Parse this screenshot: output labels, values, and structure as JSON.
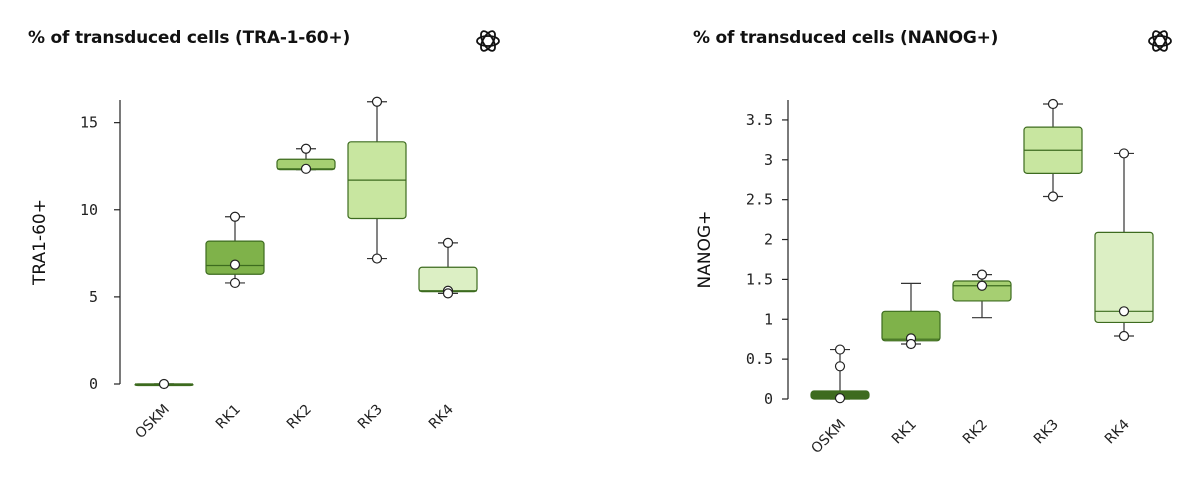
{
  "chart_data": [
    {
      "type": "box",
      "title": "% of transduced cells (TRA-1-60+)",
      "ylabel": "TRA1-60+",
      "xlabel": "",
      "ylim": [
        0,
        16.3
      ],
      "yticks": [
        0,
        5,
        10,
        15
      ],
      "ytick_labels": [
        "0",
        "5",
        "10",
        "15"
      ],
      "grid": false,
      "categories": [
        "OSKM",
        "RK1",
        "RK2",
        "RK3",
        "RK4"
      ],
      "boxes": [
        {
          "category": "OSKM",
          "min": 0,
          "q1": 0,
          "median": 0,
          "q3": 0,
          "max": 0,
          "points": [
            0
          ],
          "color": "#3e6b1f"
        },
        {
          "category": "RK1",
          "min": 5.8,
          "q1": 6.3,
          "median": 6.8,
          "q3": 8.2,
          "max": 9.6,
          "points": [
            9.6,
            6.85,
            5.8
          ],
          "color": "#7fb24a"
        },
        {
          "category": "RK2",
          "min": 12.3,
          "q1": 12.3,
          "median": 12.35,
          "q3": 12.9,
          "max": 13.5,
          "points": [
            13.5,
            12.35
          ],
          "color": "#a6cf72"
        },
        {
          "category": "RK3",
          "min": 7.2,
          "q1": 9.5,
          "median": 11.7,
          "q3": 13.9,
          "max": 16.2,
          "points": [
            16.2,
            7.2
          ],
          "color": "#c8e6a0"
        },
        {
          "category": "RK4",
          "min": 5.2,
          "q1": 5.3,
          "median": 5.35,
          "q3": 6.7,
          "max": 8.1,
          "points": [
            8.1,
            5.35,
            5.2
          ],
          "color": "#dcefc4"
        }
      ]
    },
    {
      "type": "box",
      "title": "% of transduced cells (NANOG+)",
      "ylabel": "NANOG+",
      "xlabel": "",
      "ylim": [
        0,
        3.75
      ],
      "yticks": [
        0,
        0.5,
        1,
        1.5,
        2,
        2.5,
        3,
        3.5
      ],
      "ytick_labels": [
        "0",
        "0.5",
        "1",
        "1.5",
        "2",
        "2.5",
        "3",
        "3.5"
      ],
      "grid": false,
      "categories": [
        "OSKM",
        "RK1",
        "RK2",
        "RK3",
        "RK4"
      ],
      "boxes": [
        {
          "category": "OSKM",
          "min": 0,
          "q1": 0,
          "median": 0.05,
          "q3": 0.1,
          "max": 0.62,
          "points": [
            0.62,
            0.41,
            0.01
          ],
          "color": "#3e6b1f"
        },
        {
          "category": "RK1",
          "min": 0.69,
          "q1": 0.73,
          "median": 0.75,
          "q3": 1.1,
          "max": 1.45,
          "points": [
            0.76,
            0.69
          ],
          "color": "#7fb24a"
        },
        {
          "category": "RK2",
          "min": 1.02,
          "q1": 1.23,
          "median": 1.42,
          "q3": 1.48,
          "max": 1.56,
          "points": [
            1.56,
            1.42
          ],
          "color": "#a6cf72"
        },
        {
          "category": "RK3",
          "min": 2.54,
          "q1": 2.83,
          "median": 3.12,
          "q3": 3.41,
          "max": 3.7,
          "points": [
            3.7,
            2.54
          ],
          "color": "#c8e6a0"
        },
        {
          "category": "RK4",
          "min": 0.79,
          "q1": 0.96,
          "median": 1.1,
          "q3": 2.09,
          "max": 3.08,
          "points": [
            3.08,
            1.1,
            0.79
          ],
          "color": "#dcefc4"
        }
      ]
    }
  ],
  "icons": [
    "openai-logo-icon",
    "openai-logo-icon"
  ]
}
